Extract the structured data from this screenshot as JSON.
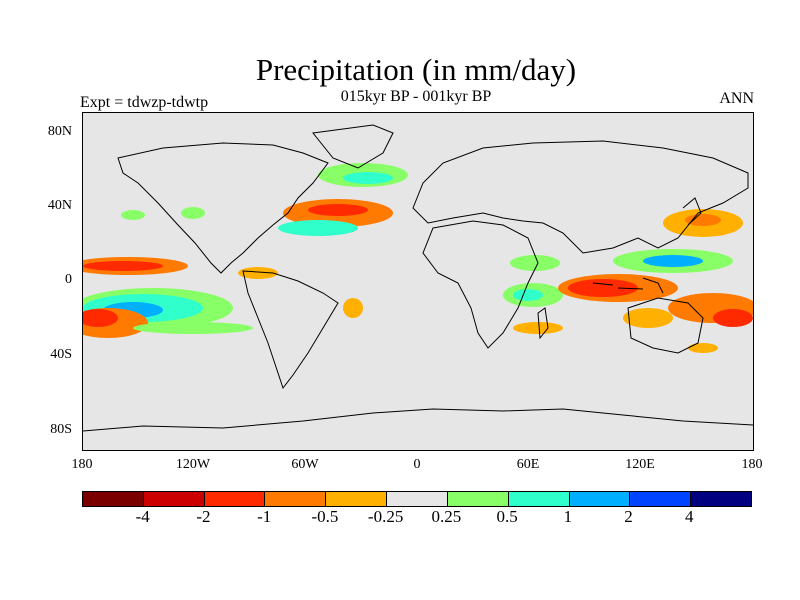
{
  "title": "Precipitation (in mm/day)",
  "subtitle": "015kyr BP - 001kyr BP",
  "experiment_label": "Expt = tdwzp-tdwtp",
  "season_label": "ANN",
  "y_ticks": [
    "80N",
    "40N",
    "0",
    "40S",
    "80S"
  ],
  "x_ticks": [
    "180",
    "120W",
    "60W",
    "0",
    "60E",
    "120E",
    "180"
  ],
  "colorbar": {
    "colors": [
      "#7a0000",
      "#cc0000",
      "#ff2a00",
      "#ff7a00",
      "#ffb000",
      "#e6e6e6",
      "#88ff66",
      "#30ffcc",
      "#00b0ff",
      "#0044ff",
      "#000080"
    ],
    "labels": [
      "-4",
      "-2",
      "-1",
      "-0.5",
      "-0.25",
      "0.25",
      "0.5",
      "1",
      "2",
      "4"
    ]
  },
  "map_background": "#e6e6e6"
}
